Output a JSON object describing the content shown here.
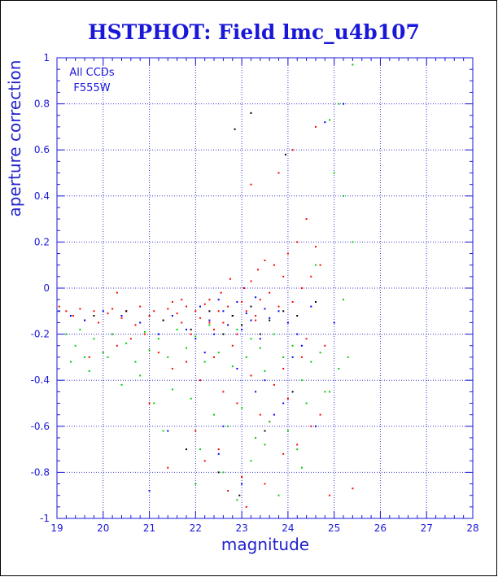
{
  "chart_data": {
    "type": "scatter",
    "title": "HSTPHOT: Field lmc_u4b107",
    "xlabel": "magnitude",
    "ylabel": "aperture correction",
    "xlim": [
      19,
      28
    ],
    "ylim": [
      -1,
      1
    ],
    "xticks": [
      19,
      20,
      21,
      22,
      23,
      24,
      25,
      26,
      27,
      28
    ],
    "yticks": [
      1,
      0.8,
      0.6,
      0.4,
      0.2,
      0,
      -0.2,
      -0.4,
      -0.6,
      -0.8,
      -1
    ],
    "grid": true,
    "annotations": [
      "All CCDs",
      "F555W"
    ],
    "colors": {
      "frame": "#1a18d8",
      "grid": "#3a3ad0",
      "text": "#1a18d8",
      "series": [
        "#ff0000",
        "#00cc00",
        "#0000ff",
        "#000000"
      ]
    },
    "series": [
      {
        "color": "#ff0000",
        "x": [
          19.05,
          19.2,
          19.35,
          19.5,
          19.6,
          19.8,
          19.9,
          20.1,
          20.2,
          20.4,
          20.5,
          20.7,
          20.8,
          21.0,
          21.1,
          21.3,
          21.4,
          21.5,
          21.6,
          21.7,
          21.8,
          21.9,
          22.0,
          22.1,
          22.2,
          22.3,
          22.4,
          22.5,
          22.55,
          22.6,
          22.7,
          22.75,
          22.8,
          22.9,
          23.0,
          23.05,
          23.1,
          23.2,
          23.3,
          23.35,
          23.4,
          23.5,
          23.6,
          23.7,
          23.8,
          23.9,
          24.0,
          24.1,
          24.2,
          24.3,
          24.4,
          24.5,
          24.6,
          24.7,
          19.7,
          20.3,
          20.6,
          21.2,
          21.5,
          21.8,
          22.1,
          22.4,
          22.6,
          22.9,
          23.2,
          23.4,
          23.7,
          24.0,
          24.3,
          24.5,
          24.8,
          23.2,
          23.8,
          24.1,
          24.6,
          21.0,
          22.2,
          23.5,
          24.9,
          25.4,
          20.3,
          20.9,
          21.7,
          22.3,
          22.8,
          23.3,
          23.9,
          24.4,
          22.0,
          22.5,
          23.0,
          23.6,
          24.2,
          21.4,
          22.7,
          23.1,
          23.9,
          24.7
        ],
        "y": [
          -0.08,
          -0.1,
          -0.12,
          -0.09,
          -0.14,
          -0.1,
          -0.15,
          -0.11,
          -0.09,
          -0.13,
          -0.1,
          -0.16,
          -0.08,
          -0.12,
          -0.1,
          -0.14,
          -0.09,
          -0.06,
          -0.11,
          -0.15,
          -0.08,
          -0.2,
          -0.1,
          -0.13,
          -0.07,
          -0.05,
          -0.18,
          -0.1,
          -0.02,
          -0.15,
          -0.08,
          0.04,
          -0.12,
          -0.2,
          -0.06,
          0.0,
          -0.1,
          0.03,
          -0.14,
          0.08,
          -0.05,
          0.12,
          -0.02,
          0.1,
          -0.08,
          0.05,
          0.15,
          -0.06,
          0.2,
          0.0,
          0.3,
          0.05,
          0.18,
          0.1,
          -0.3,
          -0.25,
          -0.22,
          -0.28,
          -0.35,
          -0.32,
          -0.4,
          -0.3,
          -0.45,
          -0.5,
          -0.38,
          -0.55,
          -0.42,
          -0.48,
          -0.3,
          -0.6,
          -0.25,
          0.45,
          0.5,
          0.6,
          0.7,
          -0.5,
          -0.75,
          -0.85,
          -0.9,
          -0.87,
          -0.02,
          -0.2,
          -0.05,
          -0.15,
          -0.25,
          -0.12,
          -0.35,
          -0.22,
          -0.62,
          -0.7,
          -0.82,
          -0.58,
          -0.68,
          -0.78,
          -0.88,
          -0.95,
          -0.72,
          -0.55
        ]
      },
      {
        "color": "#00cc00",
        "x": [
          19.2,
          19.4,
          19.5,
          19.6,
          19.8,
          20.0,
          20.2,
          20.5,
          20.7,
          20.9,
          21.0,
          21.2,
          21.4,
          21.6,
          21.8,
          22.0,
          22.2,
          22.3,
          22.5,
          22.6,
          22.8,
          22.9,
          23.1,
          23.2,
          23.4,
          23.5,
          23.7,
          23.9,
          24.1,
          24.3,
          24.5,
          24.7,
          24.9,
          25.1,
          25.3,
          19.3,
          19.7,
          20.1,
          20.4,
          20.8,
          21.1,
          21.5,
          21.9,
          22.4,
          22.7,
          23.0,
          23.3,
          23.6,
          24.0,
          24.4,
          24.8,
          25.2,
          25.4,
          22.1,
          22.6,
          23.2,
          23.8,
          24.2,
          24.6,
          25.0,
          21.3,
          22.0,
          22.9,
          23.5,
          24.3,
          25.2,
          25.4,
          24.9,
          25.1
        ],
        "y": [
          -0.2,
          -0.25,
          -0.18,
          -0.3,
          -0.22,
          -0.28,
          -0.2,
          -0.24,
          -0.32,
          -0.19,
          -0.27,
          -0.22,
          -0.3,
          -0.18,
          -0.26,
          -0.21,
          -0.32,
          -0.16,
          -0.28,
          -0.2,
          -0.34,
          -0.18,
          -0.3,
          -0.22,
          -0.26,
          -0.36,
          -0.2,
          -0.3,
          -0.25,
          -0.4,
          -0.32,
          -0.28,
          -0.45,
          -0.35,
          -0.3,
          -0.32,
          -0.36,
          -0.3,
          -0.42,
          -0.38,
          -0.5,
          -0.44,
          -0.48,
          -0.55,
          -0.6,
          -0.52,
          -0.65,
          -0.58,
          -0.62,
          -0.5,
          -0.45,
          -0.05,
          0.2,
          -0.7,
          -0.8,
          -0.75,
          -0.9,
          -0.7,
          0.1,
          0.5,
          -0.62,
          -0.85,
          -0.92,
          -0.68,
          -0.78,
          0.4,
          0.97,
          0.73,
          0.8
        ]
      },
      {
        "color": "#0000ff",
        "x": [
          19.05,
          19.3,
          19.6,
          20.0,
          20.4,
          20.8,
          21.2,
          21.5,
          21.8,
          22.0,
          22.1,
          22.3,
          22.4,
          22.5,
          22.6,
          22.7,
          22.8,
          22.9,
          23.0,
          23.1,
          23.2,
          23.3,
          23.4,
          23.5,
          23.6,
          23.8,
          24.0,
          24.2,
          24.5,
          24.8,
          25.2,
          21.4,
          22.2,
          22.9,
          23.3,
          23.7,
          24.1,
          24.6,
          25.0,
          22.5,
          23.0,
          23.5,
          21.0,
          22.6,
          23.9,
          24.3
        ],
        "y": [
          -0.1,
          -0.12,
          -0.14,
          -0.1,
          -0.12,
          -0.15,
          -0.2,
          -0.12,
          -0.18,
          -0.22,
          -0.08,
          -0.14,
          -0.2,
          -0.05,
          -0.1,
          -0.16,
          -0.12,
          -0.06,
          -0.18,
          -0.11,
          -0.14,
          -0.04,
          -0.22,
          -0.09,
          -0.13,
          -0.1,
          -0.15,
          -0.2,
          -0.08,
          0.72,
          0.8,
          -0.62,
          -0.28,
          -0.35,
          -0.45,
          -0.55,
          -0.3,
          -0.6,
          -0.15,
          -0.72,
          -0.85,
          -0.4,
          -0.88,
          -0.6,
          -0.5,
          -0.25
        ]
      },
      {
        "color": "#000000",
        "x": [
          19.8,
          20.5,
          21.3,
          21.9,
          22.3,
          22.6,
          22.8,
          23.0,
          23.2,
          23.4,
          23.6,
          23.9,
          24.2,
          24.6,
          22.85,
          23.2,
          23.95,
          22.5,
          22.95,
          23.5,
          24.1,
          21.8
        ],
        "y": [
          -0.12,
          -0.1,
          -0.14,
          -0.18,
          -0.1,
          -0.2,
          -0.12,
          -0.16,
          -0.08,
          -0.2,
          -0.14,
          -0.1,
          -0.12,
          -0.06,
          0.69,
          0.76,
          0.58,
          -0.8,
          -0.9,
          -0.62,
          -0.45,
          -0.7
        ]
      }
    ]
  }
}
